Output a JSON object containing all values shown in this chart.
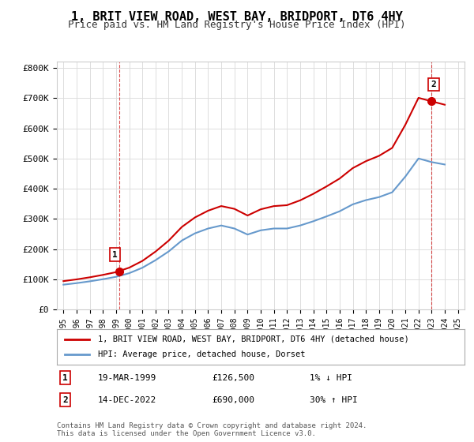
{
  "title": "1, BRIT VIEW ROAD, WEST BAY, BRIDPORT, DT6 4HY",
  "subtitle": "Price paid vs. HM Land Registry's House Price Index (HPI)",
  "ylabel": "",
  "background_color": "#ffffff",
  "plot_bg_color": "#ffffff",
  "grid_color": "#dddddd",
  "legend_line1": "1, BRIT VIEW ROAD, WEST BAY, BRIDPORT, DT6 4HY (detached house)",
  "legend_line2": "HPI: Average price, detached house, Dorset",
  "sale1_label": "1",
  "sale1_date": "19-MAR-1999",
  "sale1_price": "£126,500",
  "sale1_hpi": "1% ↓ HPI",
  "sale2_label": "2",
  "sale2_date": "14-DEC-2022",
  "sale2_price": "£690,000",
  "sale2_hpi": "30% ↑ HPI",
  "footnote": "Contains HM Land Registry data © Crown copyright and database right 2024.\nThis data is licensed under the Open Government Licence v3.0.",
  "hpi_years": [
    1995,
    1996,
    1997,
    1998,
    1999,
    2000,
    2001,
    2002,
    2003,
    2004,
    2005,
    2006,
    2007,
    2008,
    2009,
    2010,
    2011,
    2012,
    2013,
    2014,
    2015,
    2016,
    2017,
    2018,
    2019,
    2020,
    2021,
    2022,
    2023,
    2024
  ],
  "hpi_values": [
    82000,
    87000,
    93000,
    100000,
    108000,
    120000,
    138000,
    163000,
    192000,
    228000,
    252000,
    268000,
    278000,
    268000,
    248000,
    262000,
    268000,
    268000,
    278000,
    292000,
    308000,
    325000,
    348000,
    362000,
    372000,
    388000,
    440000,
    500000,
    488000,
    480000
  ],
  "hpi_color": "#6699cc",
  "sale_color": "#cc0000",
  "sale_points": [
    {
      "year": 1999.22,
      "price": 126500,
      "label": "1"
    },
    {
      "year": 2022.96,
      "price": 690000,
      "label": "2"
    }
  ],
  "ylim_max": 820000,
  "yticks": [
    0,
    100000,
    200000,
    300000,
    400000,
    500000,
    600000,
    700000,
    800000
  ],
  "ytick_labels": [
    "£0",
    "£100K",
    "£200K",
    "£300K",
    "£400K",
    "£500K",
    "£600K",
    "£700K",
    "£800K"
  ],
  "xtick_years": [
    1995,
    1996,
    1997,
    1998,
    1999,
    2000,
    2001,
    2002,
    2003,
    2004,
    2005,
    2006,
    2007,
    2008,
    2009,
    2010,
    2011,
    2012,
    2013,
    2014,
    2015,
    2016,
    2017,
    2018,
    2019,
    2020,
    2021,
    2022,
    2023,
    2024,
    2025
  ],
  "xlim": [
    1994.5,
    2025.5
  ]
}
